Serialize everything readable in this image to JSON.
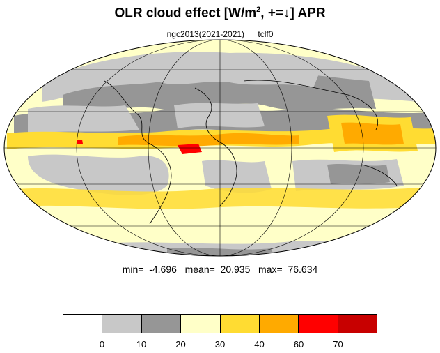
{
  "title": {
    "main": "OLR cloud effect [W/m",
    "sup": "2",
    "rest": ", +=↓]  APR"
  },
  "subtitle": {
    "model": "ngc2013(2021-2021)",
    "variable": "tclf0"
  },
  "stats": {
    "text": "min=  -4.696   mean=  20.935   max=  76.634"
  },
  "legend": {
    "colors": [
      "#ffffff",
      "#c8c8c8",
      "#969696",
      "#ffffc8",
      "#ffdc32",
      "#ffaa00",
      "#ff0000",
      "#c80000"
    ],
    "ticks": [
      "0",
      "10",
      "20",
      "30",
      "40",
      "60",
      "70"
    ]
  }
}
